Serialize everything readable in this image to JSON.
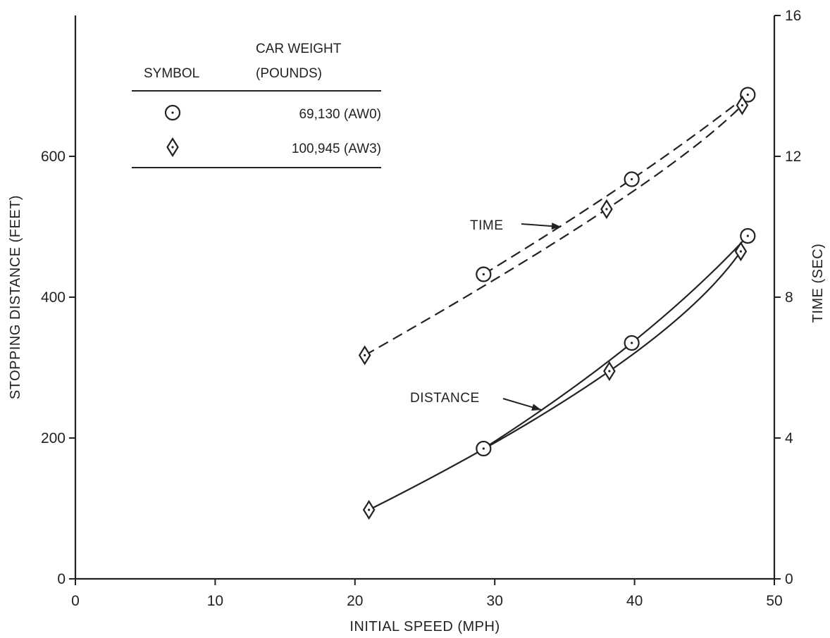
{
  "chart_data": {
    "type": "line",
    "title": "",
    "xlabel": "INITIAL SPEED (MPH)",
    "ylabel": "STOPPING DISTANCE (FEET)",
    "y2label": "TIME (SEC)",
    "xlim": [
      0,
      50
    ],
    "ylim": [
      0,
      800
    ],
    "y2lim": [
      0,
      16
    ],
    "xticks": [
      0,
      10,
      20,
      30,
      40,
      50
    ],
    "yticks": [
      0,
      200,
      400,
      600
    ],
    "y2ticks": [
      0,
      4,
      8,
      12,
      16
    ],
    "grid": false,
    "legend": {
      "placement": "top-left",
      "header_symbol": "SYMBOL",
      "header_weight_line1": "CAR WEIGHT",
      "header_weight_line2": "(POUNDS)",
      "entries": [
        {
          "marker": "circle",
          "label": "69,130 (AW0)"
        },
        {
          "marker": "diamond",
          "label": "100,945 (AW3)"
        }
      ]
    },
    "annotations": [
      {
        "text": "TIME",
        "target": "time"
      },
      {
        "text": "DISTANCE",
        "target": "distance"
      }
    ],
    "series": [
      {
        "group": "distance",
        "axis": "left",
        "marker": "circle",
        "style": "solid",
        "x": [
          29.2,
          39.8,
          48.1
        ],
        "y": [
          185,
          335,
          487
        ]
      },
      {
        "group": "distance",
        "axis": "left",
        "marker": "diamond",
        "style": "solid",
        "x": [
          21.0,
          38.2,
          47.6
        ],
        "y": [
          98,
          295,
          465
        ]
      },
      {
        "group": "time",
        "axis": "right",
        "marker": "circle",
        "style": "dashed",
        "x": [
          29.2,
          39.8,
          48.1
        ],
        "y": [
          8.65,
          11.35,
          13.75
        ]
      },
      {
        "group": "time",
        "axis": "right",
        "marker": "diamond",
        "style": "dashed",
        "x": [
          20.7,
          38.0,
          47.7
        ],
        "y": [
          6.35,
          10.5,
          13.45
        ]
      }
    ]
  }
}
